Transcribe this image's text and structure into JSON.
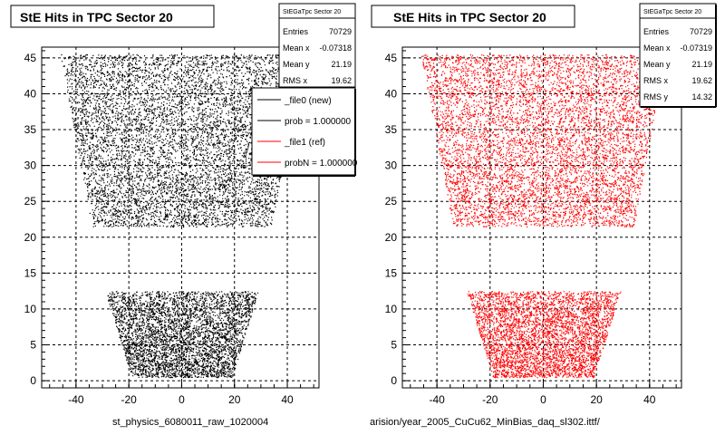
{
  "canvas": {
    "background": "#ffffff"
  },
  "panels": [
    {
      "title": "StE Hits in TPC Sector 20",
      "stats": {
        "name": "StEGaTpc Sector 20",
        "rows": [
          {
            "label": "Entries",
            "value": "70729"
          },
          {
            "label": "Mean x",
            "value": "-0.07318"
          },
          {
            "label": "Mean y",
            "value": "21.19"
          },
          {
            "label": "RMS x",
            "value": "19.62"
          }
        ]
      },
      "legend": [
        {
          "label": "_file0 (new)",
          "color": "#000000"
        },
        {
          "label": "prob = 1.000000",
          "color": "#000000"
        },
        {
          "label": "_file1 (ref)",
          "color": "#ff0000"
        },
        {
          "label": "probN = 1.000000",
          "color": "#ff0000"
        }
      ],
      "footer": "st_physics_6080011_raw_1020004",
      "color": "#000000"
    },
    {
      "title": "StE Hits in TPC Sector 20",
      "stats": {
        "name": "StEGaTpc Sector 20",
        "rows": [
          {
            "label": "Entries",
            "value": "70729"
          },
          {
            "label": "Mean x",
            "value": "-0.07319"
          },
          {
            "label": "Mean y",
            "value": "21.19"
          },
          {
            "label": "RMS x",
            "value": "19.62"
          },
          {
            "label": "RMS y",
            "value": "14.32"
          }
        ]
      },
      "footer": "arision/year_2005_CuCu62_MinBias_daq_sl302.ittf/",
      "color": "#ff0000"
    }
  ],
  "chart_data": [
    {
      "type": "scatter",
      "title": "StE Hits in TPC Sector 20",
      "xlim": [
        -53,
        52
      ],
      "ylim": [
        -1,
        46.5
      ],
      "xticks": [
        -40,
        -20,
        0,
        20,
        40
      ],
      "yticks": [
        0,
        5,
        10,
        15,
        20,
        25,
        30,
        35,
        40,
        45
      ],
      "grid": true,
      "legend_position": "top-right",
      "series": [
        {
          "name": "_file0 (new)",
          "color": "#000000"
        }
      ],
      "regions": [
        {
          "name": "outer",
          "y": [
            21.5,
            45.5
          ],
          "x_half_width_at_ymin": 34,
          "x_half_width_at_ymax": 46
        },
        {
          "name": "inner",
          "y": [
            0.5,
            12.5
          ],
          "x_half_width_at_ymin": 19,
          "x_half_width_at_ymax": 29
        }
      ]
    },
    {
      "type": "scatter",
      "title": "StE Hits in TPC Sector 20",
      "xlim": [
        -53,
        52
      ],
      "ylim": [
        -1,
        46.5
      ],
      "xticks": [
        -40,
        -20,
        0,
        20,
        40
      ],
      "yticks": [
        0,
        5,
        10,
        15,
        20,
        25,
        30,
        35,
        40,
        45
      ],
      "grid": true,
      "series": [
        {
          "name": "_file1 (ref)",
          "color": "#ff0000"
        }
      ],
      "regions": [
        {
          "name": "outer",
          "y": [
            21.5,
            45.5
          ],
          "x_half_width_at_ymin": 34,
          "x_half_width_at_ymax": 46
        },
        {
          "name": "inner",
          "y": [
            0.5,
            12.5
          ],
          "x_half_width_at_ymin": 19,
          "x_half_width_at_ymax": 29
        }
      ]
    }
  ]
}
